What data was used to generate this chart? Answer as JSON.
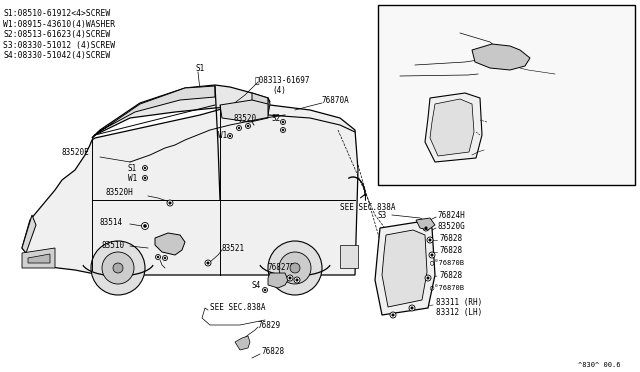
{
  "bg_color": "#ffffff",
  "line_color": "#000000",
  "text_color": "#000000",
  "watermark": "^830^ 00.6",
  "legend_lines": [
    "S1:08510-61912<4>SCREW",
    "W1:08915-43610(4)WASHER",
    "S2:08513-61623(4)SCREW",
    "S3:08330-51012 (4)SCREW",
    "S4:08330-51042(4)SCREW"
  ],
  "fs_leg": 5.8,
  "fs_lbl": 5.5,
  "fs_tiny": 5.0
}
